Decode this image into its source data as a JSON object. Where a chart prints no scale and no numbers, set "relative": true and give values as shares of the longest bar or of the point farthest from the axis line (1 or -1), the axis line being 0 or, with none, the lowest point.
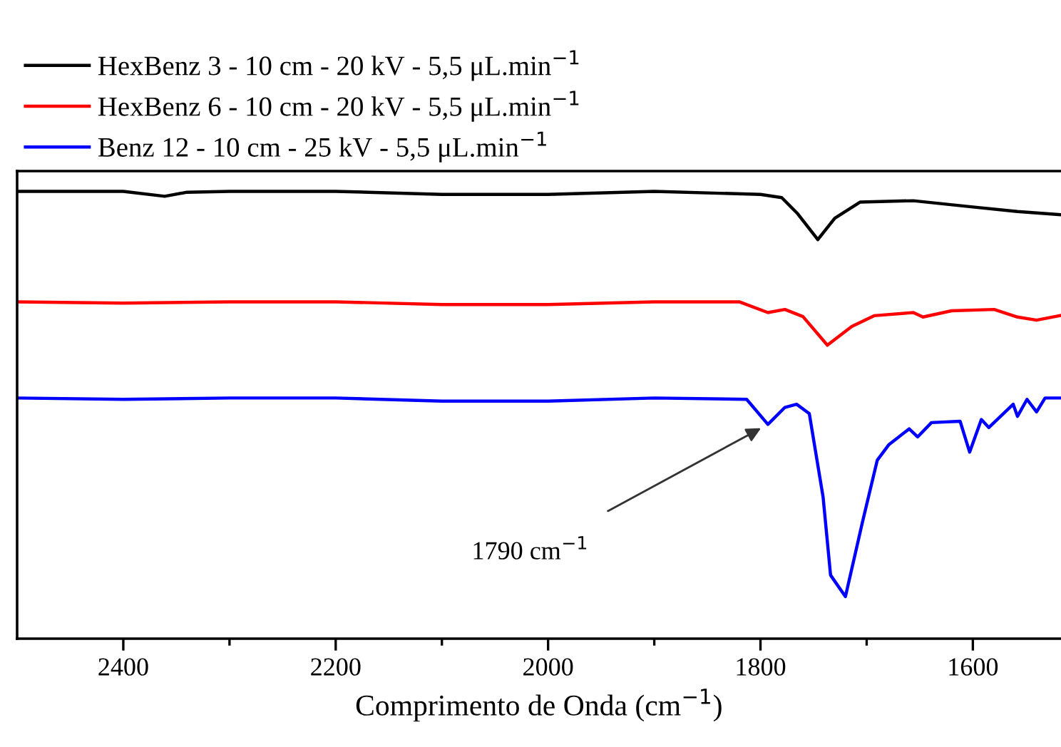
{
  "chart_data": {
    "type": "line",
    "relative": true,
    "xlabel": "Comprimento de Onda (cm$^{−1}$)",
    "xlim": [
      2500,
      1517
    ],
    "xticks": [
      2400,
      {
        "value": 2300,
        "label": null
      },
      2200,
      {
        "value": 2100,
        "label": null
      },
      2000,
      {
        "value": 1900,
        "label": null
      },
      1800,
      {
        "value": 1700,
        "label": null
      },
      1600
    ],
    "legend": "top left",
    "grid": false,
    "marker": "none",
    "line_style": "solid",
    "series": [
      {
        "name": "HexBenz 3 - 10 cm - 20 kV - 5,5 μL.min$^{−1}$",
        "color": "#000000",
        "x": [
          2500,
          2400,
          2361,
          2340,
          2300,
          2200,
          2100,
          2000,
          1900,
          1800,
          1780,
          1765,
          1746,
          1730,
          1706,
          1656,
          1600,
          1558,
          1518
        ],
        "values": [
          1,
          1,
          0.989,
          0.998,
          1,
          1,
          0.993,
          0.993,
          1,
          0.993,
          0.986,
          0.95,
          0.892,
          0.94,
          0.976,
          0.979,
          0.965,
          0.955,
          0.948
        ]
      },
      {
        "name": "HexBenz 6 - 10 cm - 20 kV - 5,5 μL.min$^{−1}$",
        "color": "#ff0000",
        "x": [
          2500,
          2400,
          2300,
          2200,
          2100,
          2000,
          1900,
          1820,
          1793,
          1777,
          1760,
          1737,
          1714,
          1693,
          1656,
          1647,
          1620,
          1580,
          1558,
          1540,
          1518
        ],
        "values": [
          0.753,
          0.75,
          0.753,
          0.753,
          0.747,
          0.747,
          0.753,
          0.753,
          0.729,
          0.736,
          0.72,
          0.656,
          0.698,
          0.722,
          0.729,
          0.719,
          0.733,
          0.736,
          0.719,
          0.712,
          0.722
        ]
      },
      {
        "name": "Benz 12 - 10 cm - 25 kV - 5,5 μL.min$^{−1}$",
        "color": "#0000ff",
        "x": [
          2500,
          2400,
          2300,
          2200,
          2100,
          2000,
          1900,
          1813,
          1793,
          1777,
          1766,
          1754,
          1741,
          1734,
          1720,
          1704,
          1690,
          1679,
          1660,
          1652,
          1639,
          1612,
          1603,
          1592,
          1585,
          1562,
          1558,
          1549,
          1540,
          1532,
          1518
        ],
        "values": [
          0.538,
          0.535,
          0.538,
          0.538,
          0.531,
          0.531,
          0.538,
          0.535,
          0.479,
          0.517,
          0.524,
          0.503,
          0.316,
          0.142,
          0.094,
          0.26,
          0.399,
          0.434,
          0.469,
          0.451,
          0.483,
          0.486,
          0.417,
          0.49,
          0.472,
          0.524,
          0.497,
          0.535,
          0.507,
          0.538,
          0.538
        ]
      }
    ],
    "annotations": [
      {
        "text": "1790 cm$^{−1}$",
        "x": 1793,
        "y": 0.479
      }
    ]
  }
}
